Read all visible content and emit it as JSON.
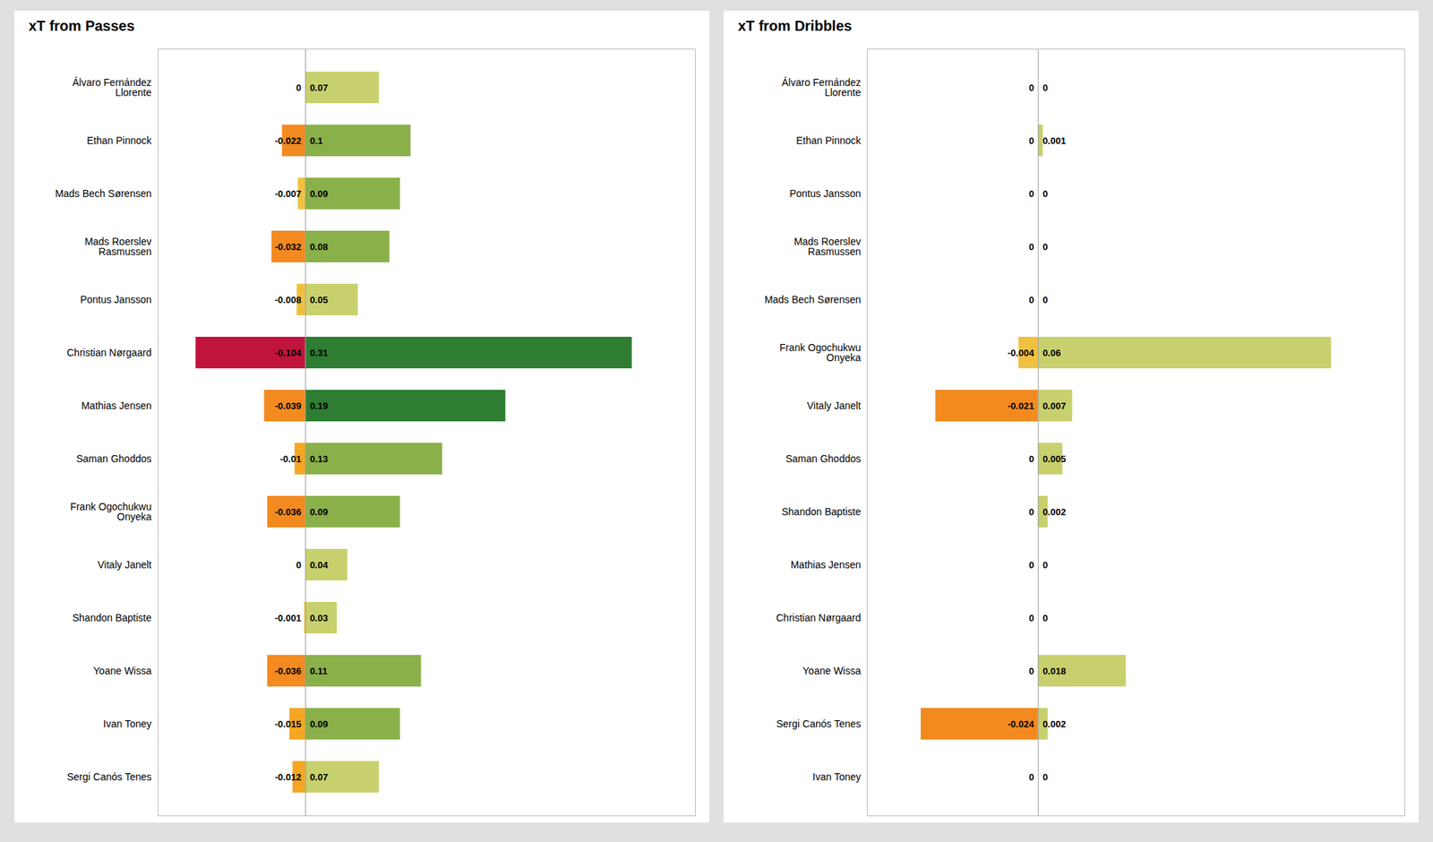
{
  "chart_data": [
    {
      "type": "bar",
      "orientation": "horizontal",
      "title": "xT from Passes",
      "categories": [
        "Álvaro Fernández\nLlorente",
        "Ethan Pinnock",
        "Mads Bech Sørensen",
        "Mads Roerslev\nRasmussen",
        "Pontus Jansson",
        "Christian Nørgaard",
        "Mathias Jensen",
        "Saman Ghoddos",
        "Frank Ogochukwu\nOnyeka",
        "Vitaly Janelt",
        "Shandon Baptiste",
        "Yoane Wissa",
        "Ivan Toney",
        "Sergi Canós Tenes"
      ],
      "series": [
        {
          "values": [
            0.0,
            -0.022,
            -0.007,
            -0.032,
            -0.008,
            -0.104,
            -0.039,
            -0.01,
            -0.036,
            0.0,
            -0.001,
            -0.036,
            -0.015,
            -0.012
          ],
          "colors": [
            "#f5a623",
            "#f28a20",
            "#f0c040",
            "#f28a20",
            "#f0c040",
            "#c0143c",
            "#f28a20",
            "#f5a623",
            "#f28a20",
            "#f5a623",
            "#f0c040",
            "#f28a20",
            "#f5a623",
            "#f5a623"
          ]
        },
        {
          "values": [
            0.07,
            0.1,
            0.09,
            0.08,
            0.05,
            0.31,
            0.19,
            0.13,
            0.09,
            0.04,
            0.03,
            0.11,
            0.09,
            0.07
          ],
          "colors": [
            "#c8d06e",
            "#8ab04a",
            "#8ab04a",
            "#8ab04a",
            "#c8d06e",
            "#2e7d32",
            "#2e7d32",
            "#8ab04a",
            "#8ab04a",
            "#c8d06e",
            "#c8d06e",
            "#8ab04a",
            "#8ab04a",
            "#c8d06e"
          ]
        }
      ],
      "xlim": [
        -0.14,
        0.37
      ],
      "data_labels": true,
      "tick_labels": "y",
      "grid": false
    },
    {
      "type": "bar",
      "orientation": "horizontal",
      "title": "xT from Dribbles",
      "categories": [
        "Álvaro Fernández\nLlorente",
        "Ethan Pinnock",
        "Pontus Jansson",
        "Mads Roerslev\nRasmussen",
        "Mads Bech Sørensen",
        "Frank Ogochukwu\nOnyeka",
        "Vitaly Janelt",
        "Saman Ghoddos",
        "Shandon Baptiste",
        "Mathias Jensen",
        "Christian Nørgaard",
        "Yoane Wissa",
        "Sergi Canós Tenes",
        "Ivan Toney"
      ],
      "series": [
        {
          "values": [
            0.0,
            0.0,
            0.0,
            0.0,
            0.0,
            -0.004,
            -0.021,
            0.0,
            0.0,
            0.0,
            0.0,
            0.0,
            -0.024,
            0.0
          ],
          "colors": [
            "#f5a623",
            "#f5a623",
            "#f5a623",
            "#f5a623",
            "#f5a623",
            "#f0c040",
            "#f28a20",
            "#f5a623",
            "#f5a623",
            "#f5a623",
            "#f5a623",
            "#f5a623",
            "#f28a20",
            "#f5a623"
          ]
        },
        {
          "values": [
            0.0,
            0.001,
            0.0,
            0.0,
            0.0,
            0.06,
            0.007,
            0.005,
            0.002,
            0.0,
            0.0,
            0.018,
            0.002,
            0.0
          ],
          "colors": [
            "#c8d06e",
            "#c8d06e",
            "#c8d06e",
            "#c8d06e",
            "#c8d06e",
            "#c8d06e",
            "#c8d06e",
            "#c8d06e",
            "#c8d06e",
            "#c8d06e",
            "#c8d06e",
            "#c8d06e",
            "#c8d06e",
            "#c8d06e"
          ]
        }
      ],
      "xlim": [
        -0.035,
        0.075
      ],
      "data_labels": true,
      "tick_labels": "y",
      "grid": false
    }
  ]
}
